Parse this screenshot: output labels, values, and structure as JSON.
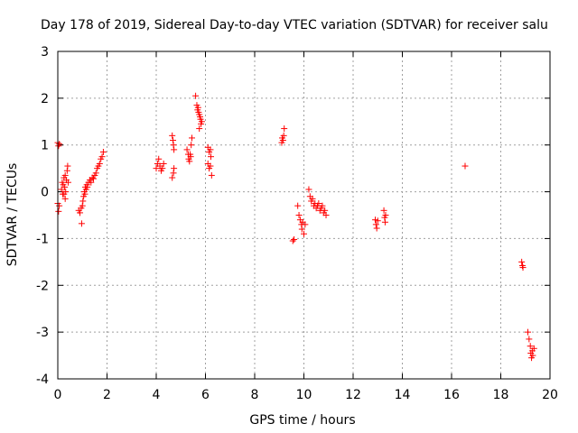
{
  "chart_data": {
    "type": "scatter",
    "title": "Day 178 of 2019, Sidereal Day-to-day VTEC variation (SDTVAR) for receiver salu",
    "xlabel": "GPS time / hours",
    "ylabel": "SDTVAR / TECUs",
    "xlim": [
      0,
      20
    ],
    "ylim": [
      -4,
      3
    ],
    "xticks": [
      "0",
      "2",
      "4",
      "6",
      "8",
      "10",
      "12",
      "14",
      "16",
      "18",
      "20"
    ],
    "yticks": [
      "-4",
      "-3",
      "-2",
      "-1",
      "0",
      "1",
      "2",
      "3"
    ],
    "grid": true,
    "marker": "+",
    "color": "#ff0000",
    "series": [
      {
        "name": "SDTVAR",
        "points": [
          [
            0.0,
            1.05
          ],
          [
            0.03,
            0.98
          ],
          [
            0.06,
            1.02
          ],
          [
            0.0,
            -0.25
          ],
          [
            0.03,
            -0.42
          ],
          [
            0.06,
            -0.3
          ],
          [
            0.15,
            0.05
          ],
          [
            0.18,
            0.2
          ],
          [
            0.2,
            -0.05
          ],
          [
            0.22,
            0.15
          ],
          [
            0.25,
            0.3
          ],
          [
            0.28,
            0.1
          ],
          [
            0.3,
            0.35
          ],
          [
            0.32,
            0.0
          ],
          [
            0.35,
            0.25
          ],
          [
            0.38,
            0.45
          ],
          [
            0.4,
            0.55
          ],
          [
            0.42,
            0.2
          ],
          [
            0.3,
            -0.15
          ],
          [
            0.25,
            -0.05
          ],
          [
            0.85,
            -0.4
          ],
          [
            0.9,
            -0.45
          ],
          [
            0.95,
            -0.35
          ],
          [
            0.97,
            -0.68
          ],
          [
            1.0,
            -0.3
          ],
          [
            1.02,
            -0.2
          ],
          [
            1.05,
            -0.1
          ],
          [
            1.08,
            0.0
          ],
          [
            1.1,
            -0.05
          ],
          [
            1.12,
            0.1
          ],
          [
            1.15,
            0.05
          ],
          [
            1.18,
            0.15
          ],
          [
            1.2,
            0.1
          ],
          [
            1.25,
            0.2
          ],
          [
            1.3,
            0.25
          ],
          [
            1.35,
            0.2
          ],
          [
            1.4,
            0.3
          ],
          [
            1.45,
            0.28
          ],
          [
            1.5,
            0.35
          ],
          [
            1.55,
            0.4
          ],
          [
            1.6,
            0.5
          ],
          [
            1.65,
            0.55
          ],
          [
            1.7,
            0.6
          ],
          [
            1.75,
            0.7
          ],
          [
            1.8,
            0.75
          ],
          [
            1.85,
            0.85
          ],
          [
            4.0,
            0.5
          ],
          [
            4.05,
            0.6
          ],
          [
            4.1,
            0.7
          ],
          [
            4.15,
            0.55
          ],
          [
            4.2,
            0.45
          ],
          [
            4.25,
            0.5
          ],
          [
            4.3,
            0.6
          ],
          [
            4.65,
            1.2
          ],
          [
            4.68,
            1.1
          ],
          [
            4.7,
            1.0
          ],
          [
            4.72,
            0.9
          ],
          [
            4.65,
            0.3
          ],
          [
            4.7,
            0.4
          ],
          [
            4.72,
            0.5
          ],
          [
            5.25,
            0.9
          ],
          [
            5.3,
            0.8
          ],
          [
            5.32,
            0.7
          ],
          [
            5.35,
            0.65
          ],
          [
            5.38,
            0.8
          ],
          [
            5.4,
            0.75
          ],
          [
            5.42,
            1.0
          ],
          [
            5.45,
            1.15
          ],
          [
            5.6,
            2.05
          ],
          [
            5.65,
            1.85
          ],
          [
            5.68,
            1.75
          ],
          [
            5.7,
            1.8
          ],
          [
            5.72,
            1.7
          ],
          [
            5.75,
            1.65
          ],
          [
            5.78,
            1.6
          ],
          [
            5.8,
            1.55
          ],
          [
            5.82,
            1.45
          ],
          [
            5.85,
            1.5
          ],
          [
            5.75,
            1.35
          ],
          [
            6.1,
            0.95
          ],
          [
            6.15,
            0.85
          ],
          [
            6.2,
            0.9
          ],
          [
            6.22,
            0.75
          ],
          [
            6.1,
            0.6
          ],
          [
            6.15,
            0.5
          ],
          [
            6.2,
            0.55
          ],
          [
            6.25,
            0.35
          ],
          [
            9.1,
            1.05
          ],
          [
            9.12,
            1.15
          ],
          [
            9.15,
            1.1
          ],
          [
            9.18,
            1.2
          ],
          [
            9.2,
            1.35
          ],
          [
            9.55,
            -1.05
          ],
          [
            9.6,
            -1.02
          ],
          [
            9.75,
            -0.3
          ],
          [
            9.8,
            -0.5
          ],
          [
            9.85,
            -0.6
          ],
          [
            9.9,
            -0.7
          ],
          [
            9.92,
            -0.8
          ],
          [
            9.95,
            -0.65
          ],
          [
            10.0,
            -0.9
          ],
          [
            10.05,
            -0.7
          ],
          [
            10.2,
            0.05
          ],
          [
            10.25,
            -0.1
          ],
          [
            10.3,
            -0.2
          ],
          [
            10.35,
            -0.15
          ],
          [
            10.4,
            -0.3
          ],
          [
            10.45,
            -0.25
          ],
          [
            10.5,
            -0.35
          ],
          [
            10.55,
            -0.3
          ],
          [
            10.6,
            -0.25
          ],
          [
            10.65,
            -0.4
          ],
          [
            10.7,
            -0.35
          ],
          [
            10.75,
            -0.3
          ],
          [
            10.8,
            -0.45
          ],
          [
            10.85,
            -0.4
          ],
          [
            10.9,
            -0.5
          ],
          [
            12.9,
            -0.6
          ],
          [
            12.93,
            -0.7
          ],
          [
            12.96,
            -0.78
          ],
          [
            13.0,
            -0.62
          ],
          [
            13.25,
            -0.4
          ],
          [
            13.28,
            -0.55
          ],
          [
            13.3,
            -0.65
          ],
          [
            13.32,
            -0.5
          ],
          [
            16.55,
            0.55
          ],
          [
            18.85,
            -1.5
          ],
          [
            18.88,
            -1.58
          ],
          [
            18.9,
            -1.62
          ],
          [
            19.1,
            -3.0
          ],
          [
            19.15,
            -3.15
          ],
          [
            19.2,
            -3.3
          ],
          [
            19.22,
            -3.45
          ],
          [
            19.25,
            -3.55
          ],
          [
            19.28,
            -3.4
          ],
          [
            19.3,
            -3.5
          ],
          [
            19.35,
            -3.35
          ]
        ]
      }
    ]
  }
}
